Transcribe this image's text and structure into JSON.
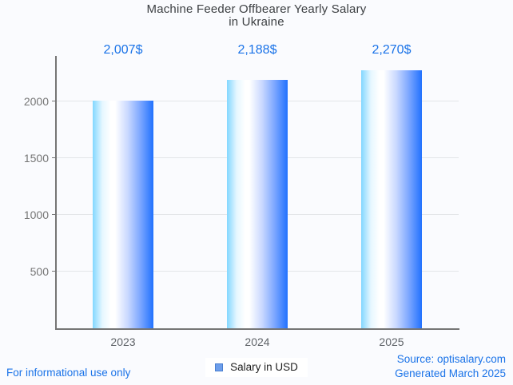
{
  "title": {
    "line1": "Machine Feeder Offbearer Yearly Salary",
    "line2": "in Ukraine"
  },
  "chart_data": {
    "type": "bar",
    "title": "Machine Feeder Offbearer Yearly Salary in Ukraine",
    "categories": [
      "2023",
      "2024",
      "2025"
    ],
    "values": [
      2007,
      2188,
      2270
    ],
    "value_labels": [
      "2,007$",
      "2,188$",
      "2,270$"
    ],
    "xlabel": "",
    "ylabel": "",
    "ylim": [
      0,
      2400
    ],
    "yticks": [
      500,
      1000,
      1500,
      2000
    ],
    "grid": true,
    "legend": {
      "label": "Salary in USD",
      "position": "bottom"
    }
  },
  "footer": {
    "left": "For informational use only",
    "source": "Source: optisalary.com",
    "generated": "Generated March 2025"
  },
  "colors": {
    "background": "#fafbfe",
    "title": "#3d4043",
    "value_label": "#1a73e8",
    "axis": "#757575",
    "grid": "#e3e5e8",
    "x_tick": "#5f6368",
    "y_tick": "#757575",
    "legend_text": "#1f1f1f",
    "legend_swatch_fill": "#6d9eeb",
    "legend_swatch_border": "#4a7fd0",
    "footer_link": "#1a73e8",
    "bar_gradient_stops": [
      "#82d7ff 0%",
      "#e6f7ff 16%",
      "#ffffff 30%",
      "#ffffff 37%",
      "#c9d8ff 58%",
      "#7ea8ff 78%",
      "#2171fe 100%"
    ]
  }
}
